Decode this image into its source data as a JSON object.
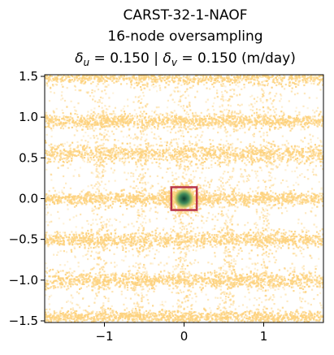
{
  "chart_data": {
    "type": "scatter",
    "title_lines": [
      "CARST-32-1-NAOF",
      "16-node oversampling",
      "δu =  0.150 | δv =  0.150 (m/day)"
    ],
    "title_line3_parts": {
      "sym1": "δ",
      "sub1": "u",
      "mid": " =  0.150 | ",
      "sym2": "δ",
      "sub2": "v",
      "tail": " =  0.150 (m/day)"
    },
    "xlabel": "",
    "ylabel": "",
    "xlim": [
      -1.75,
      1.75
    ],
    "ylim": [
      -1.52,
      1.52
    ],
    "x_ticks": [
      -1,
      0,
      1
    ],
    "x_tick_labels": [
      "−1",
      "0",
      "1"
    ],
    "y_ticks": [
      1.5,
      1.0,
      0.5,
      0.0,
      -0.5,
      -1.0,
      -1.5
    ],
    "y_tick_labels": [
      "1.5",
      "1.0",
      "0.5",
      "0.0",
      "−0.5",
      "−1.0",
      "−1.5"
    ],
    "grid": false,
    "point_color": "#fdd27e",
    "peak_center": [
      0.0,
      0.0
    ],
    "peak_color_inner": "#0c3b2e",
    "peak_color_mid": "#3d8a5a",
    "peak_color_outer": "#c9c968",
    "box_color": "#b8344a",
    "box_extent": {
      "x": [
        -0.16,
        0.16
      ],
      "y": [
        -0.14,
        0.14
      ]
    },
    "bands": [
      {
        "y": 1.5,
        "spread": 0.05
      },
      {
        "y": 0.95,
        "spread": 0.045
      },
      {
        "y": 0.55,
        "spread": 0.06
      },
      {
        "y": 0.0,
        "spread": 0.04
      },
      {
        "y": -0.5,
        "spread": 0.05
      },
      {
        "y": -1.0,
        "spread": 0.05
      },
      {
        "y": -1.45,
        "spread": 0.04
      }
    ],
    "columns": [
      -1.05,
      -0.55,
      0.0,
      0.55,
      1.0
    ]
  }
}
